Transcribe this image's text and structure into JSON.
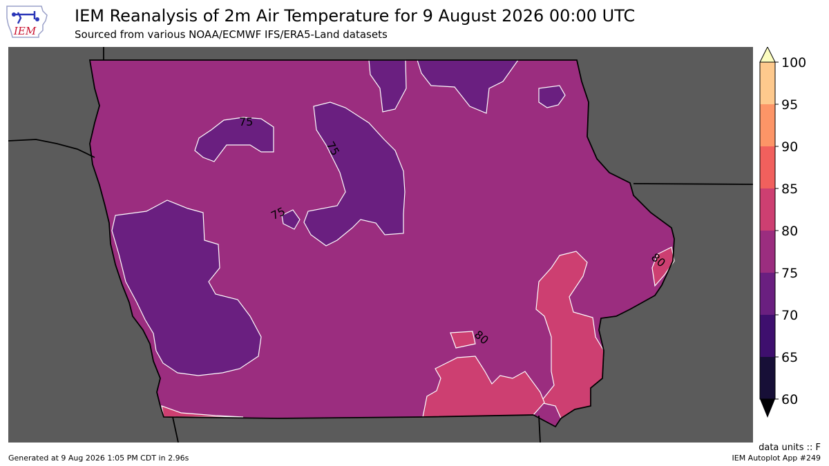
{
  "header": {
    "title": "IEM Reanalysis of 2m Air Temperature for 9 August 2026 00:00 UTC",
    "subtitle": "Sourced from various NOAA/ECMWF IFS/ERA5-Land datasets",
    "logo_text": "IEM"
  },
  "map": {
    "region": "Iowa",
    "contour_labels": [
      "75",
      "75",
      "75",
      "80",
      "80"
    ]
  },
  "colorbar": {
    "ticks": [
      "60",
      "65",
      "70",
      "75",
      "80",
      "85",
      "90",
      "95",
      "100"
    ],
    "colors": [
      "#170f37",
      "#3e0f6e",
      "#6a1f80",
      "#9b2d7f",
      "#cd3f71",
      "#f1605d",
      "#fd9567",
      "#fec98d",
      "#fcfdbf"
    ],
    "under_color": "#000004",
    "units": "data units :: F"
  },
  "footer": {
    "generated": "Generated at 9 Aug 2026 1:05 PM CDT in 2.96s",
    "app": "IEM Autoplot App #249"
  }
}
